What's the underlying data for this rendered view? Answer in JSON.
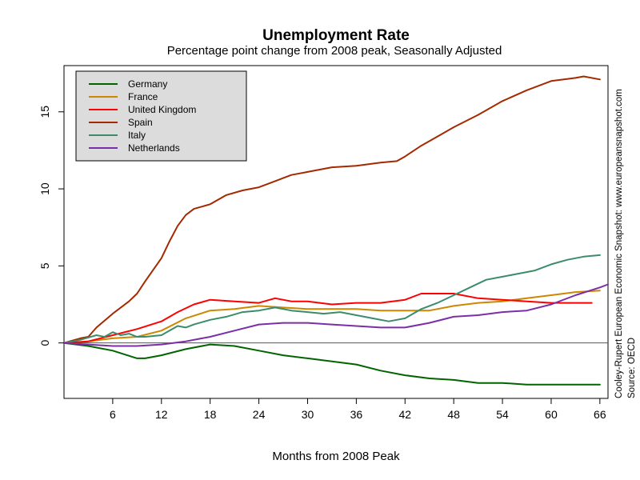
{
  "chart_data": {
    "type": "line",
    "title": "Unemployment Rate",
    "subtitle": "Percentage point change from 2008 peak, Seasonally Adjusted",
    "xlabel": "Months from 2008 Peak",
    "ylabel": "",
    "xlim": [
      0,
      67
    ],
    "ylim": [
      -3.6,
      18.0
    ],
    "x_ticks": [
      6,
      12,
      18,
      24,
      30,
      36,
      42,
      48,
      54,
      60,
      66
    ],
    "y_ticks": [
      0,
      5,
      10,
      15
    ],
    "zero_line": true,
    "grid": false,
    "legend_position": "top-left",
    "side_note_1": "Cooley-Rupert European Economic Snapshot: www.europeansnapshot.com",
    "side_note_2": "Source: OECD",
    "series": [
      {
        "name": "Germany",
        "color": "#006400",
        "points": [
          [
            0,
            0
          ],
          [
            3,
            -0.2
          ],
          [
            6,
            -0.5
          ],
          [
            9,
            -1.0
          ],
          [
            10,
            -1.0
          ],
          [
            12,
            -0.8
          ],
          [
            15,
            -0.4
          ],
          [
            18,
            -0.1
          ],
          [
            21,
            -0.2
          ],
          [
            24,
            -0.5
          ],
          [
            27,
            -0.8
          ],
          [
            30,
            -1.0
          ],
          [
            33,
            -1.2
          ],
          [
            36,
            -1.4
          ],
          [
            39,
            -1.8
          ],
          [
            42,
            -2.1
          ],
          [
            45,
            -2.3
          ],
          [
            48,
            -2.4
          ],
          [
            51,
            -2.6
          ],
          [
            54,
            -2.6
          ],
          [
            57,
            -2.7
          ],
          [
            60,
            -2.7
          ],
          [
            63,
            -2.7
          ],
          [
            66,
            -2.7
          ]
        ]
      },
      {
        "name": "France",
        "color": "#cc8800",
        "points": [
          [
            0,
            0
          ],
          [
            3,
            0.1
          ],
          [
            6,
            0.3
          ],
          [
            9,
            0.4
          ],
          [
            12,
            0.8
          ],
          [
            15,
            1.6
          ],
          [
            18,
            2.1
          ],
          [
            21,
            2.2
          ],
          [
            24,
            2.4
          ],
          [
            27,
            2.3
          ],
          [
            30,
            2.2
          ],
          [
            33,
            2.2
          ],
          [
            36,
            2.2
          ],
          [
            39,
            2.1
          ],
          [
            42,
            2.1
          ],
          [
            45,
            2.1
          ],
          [
            48,
            2.4
          ],
          [
            51,
            2.6
          ],
          [
            54,
            2.7
          ],
          [
            57,
            2.9
          ],
          [
            60,
            3.1
          ],
          [
            63,
            3.3
          ],
          [
            66,
            3.4
          ]
        ]
      },
      {
        "name": "United Kingdom",
        "color": "#ff0000",
        "points": [
          [
            0,
            0
          ],
          [
            3,
            0.1
          ],
          [
            6,
            0.5
          ],
          [
            9,
            0.9
          ],
          [
            12,
            1.4
          ],
          [
            14,
            2.0
          ],
          [
            16,
            2.5
          ],
          [
            18,
            2.8
          ],
          [
            21,
            2.7
          ],
          [
            24,
            2.6
          ],
          [
            26,
            2.9
          ],
          [
            28,
            2.7
          ],
          [
            30,
            2.7
          ],
          [
            33,
            2.5
          ],
          [
            36,
            2.6
          ],
          [
            39,
            2.6
          ],
          [
            42,
            2.8
          ],
          [
            44,
            3.2
          ],
          [
            46,
            3.2
          ],
          [
            48,
            3.2
          ],
          [
            51,
            2.9
          ],
          [
            54,
            2.8
          ],
          [
            57,
            2.7
          ],
          [
            60,
            2.6
          ],
          [
            62,
            2.6
          ],
          [
            65,
            2.6
          ]
        ]
      },
      {
        "name": "Spain",
        "color": "#a32a00",
        "points": [
          [
            0,
            0
          ],
          [
            2,
            0.3
          ],
          [
            3,
            0.4
          ],
          [
            4,
            1.0
          ],
          [
            6,
            1.9
          ],
          [
            8,
            2.7
          ],
          [
            9,
            3.2
          ],
          [
            10,
            4.0
          ],
          [
            12,
            5.5
          ],
          [
            13,
            6.6
          ],
          [
            14,
            7.6
          ],
          [
            15,
            8.3
          ],
          [
            16,
            8.7
          ],
          [
            18,
            9.0
          ],
          [
            20,
            9.6
          ],
          [
            22,
            9.9
          ],
          [
            24,
            10.1
          ],
          [
            26,
            10.5
          ],
          [
            28,
            10.9
          ],
          [
            30,
            11.1
          ],
          [
            33,
            11.4
          ],
          [
            36,
            11.5
          ],
          [
            39,
            11.7
          ],
          [
            41,
            11.8
          ],
          [
            42,
            12.1
          ],
          [
            44,
            12.8
          ],
          [
            46,
            13.4
          ],
          [
            48,
            14.0
          ],
          [
            51,
            14.8
          ],
          [
            54,
            15.7
          ],
          [
            57,
            16.4
          ],
          [
            60,
            17.0
          ],
          [
            63,
            17.2
          ],
          [
            64,
            17.3
          ],
          [
            66,
            17.1
          ]
        ]
      },
      {
        "name": "Italy",
        "color": "#3c8c6c",
        "points": [
          [
            0,
            0
          ],
          [
            2,
            0.2
          ],
          [
            4,
            0.5
          ],
          [
            5,
            0.4
          ],
          [
            6,
            0.7
          ],
          [
            7,
            0.5
          ],
          [
            8,
            0.6
          ],
          [
            9,
            0.4
          ],
          [
            10,
            0.4
          ],
          [
            12,
            0.5
          ],
          [
            13,
            0.8
          ],
          [
            14,
            1.1
          ],
          [
            15,
            1.0
          ],
          [
            16,
            1.2
          ],
          [
            18,
            1.5
          ],
          [
            20,
            1.7
          ],
          [
            22,
            2.0
          ],
          [
            24,
            2.1
          ],
          [
            26,
            2.3
          ],
          [
            28,
            2.1
          ],
          [
            30,
            2.0
          ],
          [
            32,
            1.9
          ],
          [
            34,
            2.0
          ],
          [
            36,
            1.8
          ],
          [
            38,
            1.6
          ],
          [
            40,
            1.4
          ],
          [
            42,
            1.6
          ],
          [
            44,
            2.2
          ],
          [
            46,
            2.6
          ],
          [
            48,
            3.1
          ],
          [
            50,
            3.6
          ],
          [
            52,
            4.1
          ],
          [
            54,
            4.3
          ],
          [
            56,
            4.5
          ],
          [
            58,
            4.7
          ],
          [
            60,
            5.1
          ],
          [
            62,
            5.4
          ],
          [
            64,
            5.6
          ],
          [
            66,
            5.7
          ]
        ]
      },
      {
        "name": "Netherlands",
        "color": "#7a2fa8",
        "points": [
          [
            0,
            0
          ],
          [
            3,
            -0.1
          ],
          [
            6,
            -0.2
          ],
          [
            9,
            -0.2
          ],
          [
            12,
            -0.1
          ],
          [
            15,
            0.1
          ],
          [
            18,
            0.4
          ],
          [
            21,
            0.8
          ],
          [
            24,
            1.2
          ],
          [
            27,
            1.3
          ],
          [
            30,
            1.3
          ],
          [
            33,
            1.2
          ],
          [
            36,
            1.1
          ],
          [
            39,
            1.0
          ],
          [
            42,
            1.0
          ],
          [
            45,
            1.3
          ],
          [
            48,
            1.7
          ],
          [
            51,
            1.8
          ],
          [
            54,
            2.0
          ],
          [
            57,
            2.1
          ],
          [
            60,
            2.5
          ],
          [
            63,
            3.1
          ],
          [
            66,
            3.6
          ],
          [
            67,
            3.8
          ]
        ]
      }
    ]
  }
}
